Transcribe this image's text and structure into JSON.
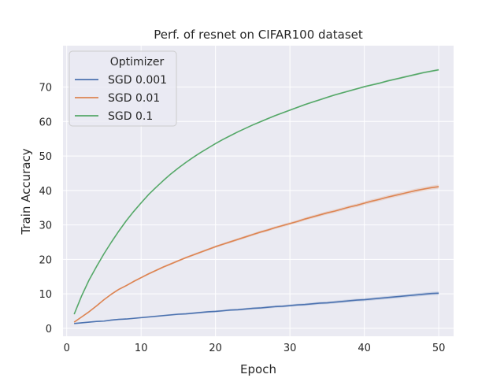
{
  "chart_data": {
    "type": "line",
    "title": "Perf. of resnet on CIFAR100 dataset",
    "xlabel": "Epoch",
    "ylabel": "Train Accuracy",
    "xlim": [
      -0.5,
      52.0
    ],
    "ylim": [
      -2.3,
      82.0
    ],
    "xticks": [
      0,
      10,
      20,
      30,
      40,
      50
    ],
    "yticks": [
      0,
      10,
      20,
      30,
      40,
      50,
      60,
      70
    ],
    "grid": true,
    "legend": {
      "title": "Optimizer",
      "placement": "top-left"
    },
    "x": [
      1,
      2,
      3,
      4,
      5,
      6,
      7,
      8,
      9,
      10,
      11,
      12,
      13,
      14,
      15,
      16,
      17,
      18,
      19,
      20,
      21,
      22,
      23,
      24,
      25,
      26,
      27,
      28,
      29,
      30,
      31,
      32,
      33,
      34,
      35,
      36,
      37,
      38,
      39,
      40,
      41,
      42,
      43,
      44,
      45,
      46,
      47,
      48,
      49,
      50
    ],
    "series": [
      {
        "name": "SGD 0.001",
        "color": "#4c72b0",
        "values": [
          1.4,
          1.6,
          1.8,
          2.0,
          2.1,
          2.4,
          2.6,
          2.7,
          2.9,
          3.1,
          3.3,
          3.5,
          3.7,
          3.9,
          4.1,
          4.2,
          4.4,
          4.6,
          4.8,
          4.9,
          5.1,
          5.3,
          5.4,
          5.6,
          5.8,
          5.9,
          6.1,
          6.3,
          6.4,
          6.6,
          6.8,
          6.9,
          7.1,
          7.3,
          7.4,
          7.6,
          7.8,
          8.0,
          8.2,
          8.3,
          8.5,
          8.7,
          8.9,
          9.1,
          9.3,
          9.5,
          9.7,
          9.9,
          10.1,
          10.2
        ],
        "band": 0.5
      },
      {
        "name": "SGD 0.01",
        "color": "#dd8452",
        "values": [
          1.8,
          3.3,
          4.8,
          6.5,
          8.3,
          9.9,
          11.3,
          12.4,
          13.6,
          14.7,
          15.8,
          16.8,
          17.8,
          18.7,
          19.6,
          20.5,
          21.3,
          22.1,
          22.9,
          23.7,
          24.4,
          25.1,
          25.8,
          26.5,
          27.2,
          27.9,
          28.5,
          29.2,
          29.8,
          30.4,
          31.0,
          31.7,
          32.3,
          32.9,
          33.5,
          34.0,
          34.6,
          35.2,
          35.7,
          36.3,
          36.9,
          37.4,
          38.0,
          38.5,
          39.0,
          39.5,
          40.0,
          40.4,
          40.8,
          41.1
        ],
        "band": 0.6
      },
      {
        "name": "SGD 0.1",
        "color": "#55a868",
        "values": [
          4.1,
          9.4,
          14.0,
          17.9,
          21.6,
          25.0,
          28.2,
          31.2,
          33.9,
          36.4,
          38.8,
          40.9,
          42.9,
          44.8,
          46.5,
          48.1,
          49.6,
          51.0,
          52.3,
          53.6,
          54.8,
          55.9,
          57.0,
          58.0,
          59.0,
          59.9,
          60.8,
          61.7,
          62.5,
          63.3,
          64.1,
          64.9,
          65.6,
          66.3,
          67.0,
          67.7,
          68.3,
          68.9,
          69.5,
          70.1,
          70.6,
          71.1,
          71.7,
          72.2,
          72.7,
          73.2,
          73.7,
          74.2,
          74.6,
          75.0
        ],
        "band": 0.3
      }
    ]
  }
}
